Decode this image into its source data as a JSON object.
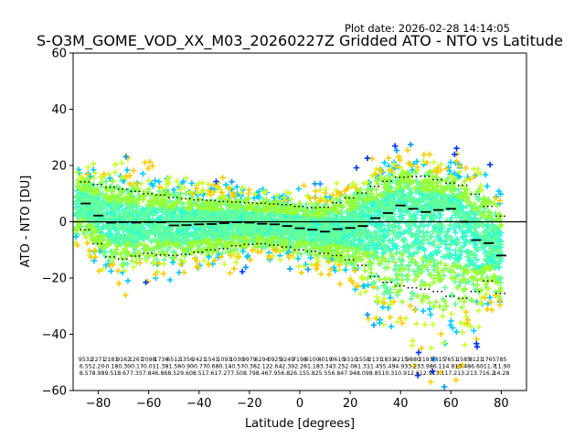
{
  "chart_data": {
    "type": "scatter",
    "title": "S-O3M_GOME_VOD_XX_M03_20260227Z Gridded ATO - NTO vs Latitude",
    "plot_date": "Plot date: 2026-02-28 14:14:05",
    "xlabel": "Latitude [degrees]",
    "ylabel": "ATO - NTO [DU]",
    "xlim": [
      -90,
      90
    ],
    "ylim": [
      -60,
      60
    ],
    "xticks": [
      -80,
      -60,
      -40,
      -20,
      0,
      20,
      40,
      60,
      80
    ],
    "yticks": [
      -60,
      -40,
      -20,
      0,
      20,
      40,
      60
    ],
    "grid": false,
    "reference_line_y": 0,
    "colors": [
      "#0033ff",
      "#0099ff",
      "#00ccff",
      "#33ffcc",
      "#66ff99",
      "#99ff33",
      "#ccff33",
      "#ffcc00"
    ],
    "bins_lat": [
      -85,
      -80,
      -75,
      -70,
      -65,
      -60,
      -55,
      -50,
      -45,
      -40,
      -35,
      -30,
      -25,
      -20,
      -15,
      -10,
      -5,
      0,
      5,
      10,
      15,
      20,
      25,
      30,
      35,
      40,
      45,
      50,
      55,
      60,
      65,
      70,
      75,
      80
    ],
    "mean": [
      6.5,
      2.2,
      -0.3,
      -0.1,
      -0.3,
      -0.1,
      -0.2,
      -1.3,
      -1.2,
      -0.9,
      -0.8,
      -0.5,
      -0.2,
      -0.3,
      -0.7,
      -0.9,
      -1.5,
      -2.3,
      -2.8,
      -3.5,
      -2.6,
      -2.2,
      -1.5,
      1.3,
      3.1,
      5.8,
      4.6,
      3.5,
      4.2,
      4.6,
      0.0,
      -6.5,
      -7.6,
      -12.0
    ],
    "plus_sigma": [
      14.2,
      13.2,
      12.3,
      11.6,
      10.8,
      10.0,
      9.5,
      8.6,
      8.2,
      7.8,
      7.6,
      7.2,
      7.0,
      6.8,
      6.6,
      6.3,
      6.1,
      5.5,
      5.0,
      5.2,
      6.8,
      8.5,
      10.2,
      12.6,
      14.4,
      15.8,
      16.0,
      16.2,
      15.0,
      13.8,
      13.0,
      9.8,
      5.5,
      2.0
    ],
    "minus_sigma": [
      -2.8,
      -7.8,
      -12.5,
      -13.3,
      -12.2,
      -11.2,
      -11.8,
      -12.0,
      -11.6,
      -10.8,
      -10.0,
      -9.5,
      -8.5,
      -8.0,
      -7.8,
      -8.3,
      -9.0,
      -10.0,
      -10.5,
      -11.2,
      -12.0,
      -13.5,
      -15.5,
      -19.5,
      -21.5,
      -22.8,
      -23.5,
      -24.0,
      -24.8,
      -26.5,
      -27.2,
      -24.8,
      -21.0,
      -25.5
    ],
    "stats": [
      [
        "9532",
        "6.55",
        "8.57"
      ],
      [
        "2271",
        "2.20",
        "8.98"
      ],
      [
        "2181",
        "-0.18",
        "9.51"
      ],
      [
        "9162",
        "-0.30",
        "8.67"
      ],
      [
        "1267",
        "-0.17",
        "7.35"
      ],
      [
        "2098",
        "-0.01",
        "7.84"
      ],
      [
        "1736",
        "-1.38",
        "6.86"
      ],
      [
        "6512",
        "-1.56",
        "8.52"
      ],
      [
        "1356",
        "-0.90",
        "9.60"
      ],
      [
        "2421",
        "-0.77",
        "8.51"
      ],
      [
        "1541",
        "-0.68",
        "7.61"
      ],
      [
        "1093",
        "-0.14",
        "7.27"
      ],
      [
        "1030",
        "-0.57",
        "7.50"
      ],
      [
        "9979",
        "-0.36",
        "8.79"
      ],
      [
        "6294",
        "-2.12",
        "8.46"
      ],
      [
        "0925",
        "-2.64",
        "7.95"
      ],
      [
        "9249",
        "-2.30",
        "6.82"
      ],
      [
        "7198",
        "-2.26",
        "6.15"
      ],
      [
        "6100",
        "-1.18",
        "5.82"
      ],
      [
        "4019",
        "-3.34",
        "5.55"
      ],
      [
        "0610",
        "-3.25",
        "6.84"
      ],
      [
        "9310",
        "-2.06",
        "7.94"
      ],
      [
        "1558",
        "-1.31",
        "8.09"
      ],
      [
        "2131",
        "-1.45",
        "8.85"
      ],
      [
        "1831",
        "-5.49",
        "10.3"
      ],
      [
        "4215",
        "-4.93",
        "10.9"
      ],
      [
        "9880",
        "-3.23",
        "12.6"
      ],
      [
        "2193",
        "-3.98",
        "12.9"
      ],
      [
        "7315",
        "-6.11",
        "13.1"
      ],
      [
        "7651",
        "-4.81",
        "17.2"
      ],
      [
        "1585",
        "-3.48",
        "13.2"
      ],
      [
        "8121",
        "-6.60",
        "13.7"
      ],
      [
        "1765",
        "-11.7",
        "16.2"
      ],
      [
        "785",
        "-11.90",
        "14.28"
      ]
    ]
  }
}
